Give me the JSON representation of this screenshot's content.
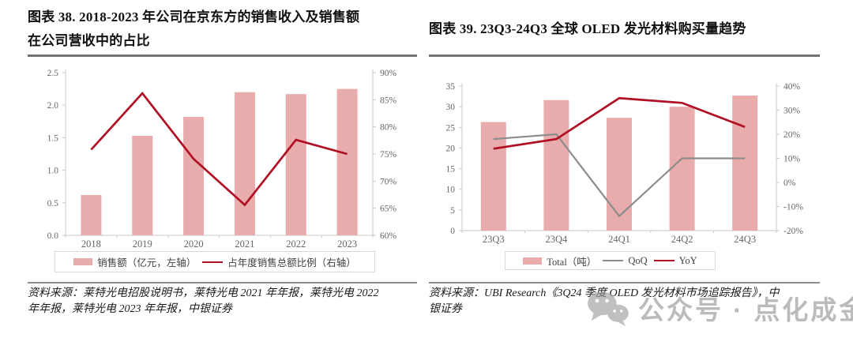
{
  "figures": [
    {
      "label": "图表 38",
      "title": "图表 38. 2018-2023 年公司在京东方的销售收入及销售额在公司营收中的占比",
      "title_lines": [
        "图表 38. 2018-2023 年公司在京东方的销售收入及销售额",
        "在公司营收中的占比"
      ],
      "source": "资料来源：莱特光电招股说明书，莱特光电 2021 年年报，莱特光电 2022 年年报，莱特光电 2023 年年报，中银证券",
      "source_lines": [
        "资料来源：莱特光电招股说明书，莱特光电 2021 年年报，莱特光电 2022",
        "年年报，莱特光电 2023 年年报，中银证券"
      ]
    },
    {
      "label": "图表 39",
      "title": "图表 39. 23Q3-24Q3 全球 OLED 发光材料购买量趋势",
      "title_lines": [
        "图表 39. 23Q3-24Q3 全球 OLED 发光材料购买量趋势"
      ],
      "source": "资料来源：UBI Research《3Q24 季度 OLED 发光材料市场追踪报告》，中银证券",
      "source_lines": [
        "资料来源：UBI Research《3Q24 季度 OLED 发光材料市场追踪报告》，中",
        "银证券"
      ]
    }
  ],
  "chart_data": [
    {
      "type": "bar+line",
      "title": "2018-2023 年公司在京东方的销售收入及销售额在公司营收中的占比",
      "categories": [
        "2018",
        "2019",
        "2020",
        "2021",
        "2022",
        "2023"
      ],
      "series": [
        {
          "name": "销售额（亿元，左轴）",
          "type": "bar",
          "axis": "left",
          "color": "#E9ACAC",
          "values": [
            0.62,
            1.53,
            1.82,
            2.2,
            2.17,
            2.25
          ]
        },
        {
          "name": "占年度销售总额比例（右轴）",
          "type": "line",
          "axis": "right",
          "color": "#B00F24",
          "unit": "%",
          "values": [
            75.8,
            86.2,
            74.1,
            65.6,
            77.6,
            75.0
          ]
        }
      ],
      "left_axis": {
        "min": 0,
        "max": 2.5,
        "tick_labels": [
          "0.0",
          "0.5",
          "1.0",
          "1.5",
          "2.0",
          "2.5"
        ]
      },
      "right_axis": {
        "min": 60,
        "max": 90,
        "tick_labels": [
          "60%",
          "65%",
          "70%",
          "75%",
          "80%",
          "85%",
          "90%"
        ]
      },
      "grid": false,
      "legend_position": "bottom"
    },
    {
      "type": "bar+line",
      "title": "23Q3-24Q3 全球 OLED 发光材料购买量趋势",
      "categories": [
        "23Q3",
        "23Q4",
        "24Q1",
        "24Q2",
        "24Q3"
      ],
      "series": [
        {
          "name": "Total（吨）",
          "type": "bar",
          "axis": "left",
          "color": "#E9ACAC",
          "values": [
            26.3,
            31.6,
            27.3,
            30.0,
            32.7
          ]
        },
        {
          "name": "QoQ",
          "type": "line",
          "axis": "right",
          "color": "#8C8C8C",
          "unit": "%",
          "values": [
            18,
            20,
            -14,
            10,
            10
          ]
        },
        {
          "name": "YoY",
          "type": "line",
          "axis": "right",
          "color": "#B00F24",
          "unit": "%",
          "values": [
            14,
            18,
            35,
            33,
            23
          ]
        }
      ],
      "left_axis": {
        "min": 0,
        "max": 35,
        "tick_labels": [
          "0",
          "5",
          "10",
          "15",
          "20",
          "25",
          "30",
          "35"
        ]
      },
      "right_axis": {
        "min": -20,
        "max": 40,
        "tick_labels": [
          "-20%",
          "-10%",
          "0%",
          "10%",
          "20%",
          "30%",
          "40%"
        ]
      },
      "grid": false,
      "legend_position": "bottom"
    }
  ],
  "watermark": {
    "icon": "wechat-icon",
    "text": "公众号 · 点化成金"
  },
  "colors": {
    "bar_pink": "#E9ACAC",
    "line_red": "#B00F24",
    "line_gray": "#8C8C8C",
    "axis_gray": "#C8C8C8",
    "tick_text": "#666666",
    "rule_gray": "#737373"
  }
}
